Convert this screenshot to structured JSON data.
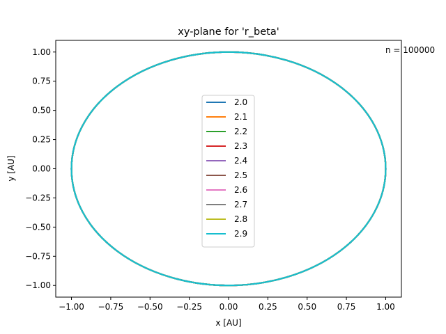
{
  "chart_data": {
    "type": "line",
    "title": "xy-plane for 'r_beta'",
    "xlabel": "x [AU]",
    "ylabel": "y [AU]",
    "xlim": [
      -1.1,
      1.1
    ],
    "ylim": [
      -1.1,
      1.1
    ],
    "x_ticks": [
      -1.0,
      -0.75,
      -0.5,
      -0.25,
      0.0,
      0.25,
      0.5,
      0.75,
      1.0
    ],
    "x_tick_labels": [
      "−1.00",
      "−0.75",
      "−0.50",
      "−0.25",
      "0.00",
      "0.25",
      "0.50",
      "0.75",
      "1.00"
    ],
    "y_ticks": [
      -1.0,
      -0.75,
      -0.5,
      -0.25,
      0.0,
      0.25,
      0.5,
      0.75,
      1.0
    ],
    "y_tick_labels": [
      "−1.00",
      "−0.75",
      "−0.50",
      "−0.25",
      "0.00",
      "0.25",
      "0.50",
      "0.75",
      "1.00"
    ],
    "grid": false,
    "legend_placement": "center",
    "annotation": "n = 100000",
    "orbit": {
      "shape": "circle",
      "center": [
        0,
        0
      ],
      "radius": 1.0
    },
    "series": [
      {
        "name": "2.0",
        "color": "#1f77b4"
      },
      {
        "name": "2.1",
        "color": "#ff7f0e"
      },
      {
        "name": "2.2",
        "color": "#2ca02c"
      },
      {
        "name": "2.3",
        "color": "#d62728"
      },
      {
        "name": "2.4",
        "color": "#9467bd"
      },
      {
        "name": "2.5",
        "color": "#8c564b"
      },
      {
        "name": "2.6",
        "color": "#e377c2"
      },
      {
        "name": "2.7",
        "color": "#7f7f7f"
      },
      {
        "name": "2.8",
        "color": "#bcbd22"
      },
      {
        "name": "2.9",
        "color": "#17becf"
      }
    ]
  }
}
